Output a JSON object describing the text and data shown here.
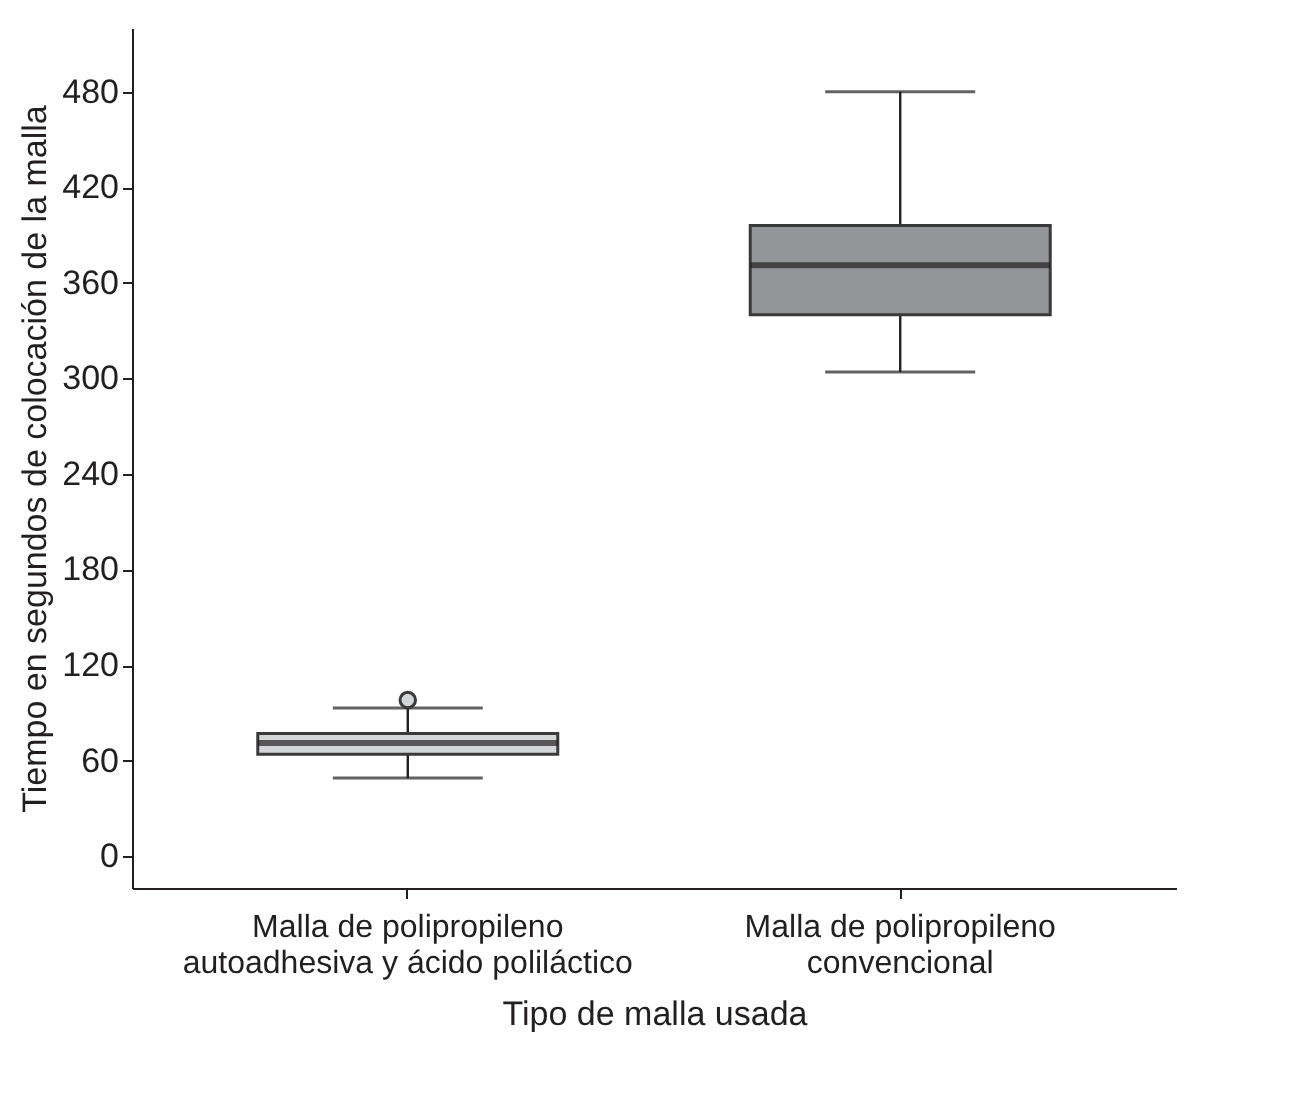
{
  "chart_data": {
    "type": "box",
    "xlabel": "Tipo de malla usada",
    "ylabel": "Tiempo en segundos de colocación de la malla",
    "categories": [
      "Malla de polipropileno\nautoadhesiva y ácido poliláctico",
      "Malla de polipropileno\nconvencional"
    ],
    "boxes": [
      {
        "low": 49,
        "q1": 64,
        "median": 71,
        "q3": 77,
        "high": 93,
        "outliers": [
          98
        ]
      },
      {
        "low": 304,
        "q1": 340,
        "median": 371,
        "q3": 396,
        "high": 480
      }
    ],
    "colors": [
      "#d4d5d6",
      "#939598"
    ],
    "ylim": [
      -20,
      520
    ],
    "yticks": [
      0,
      60,
      120,
      180,
      240,
      300,
      360,
      420,
      480
    ],
    "grid": false
  }
}
